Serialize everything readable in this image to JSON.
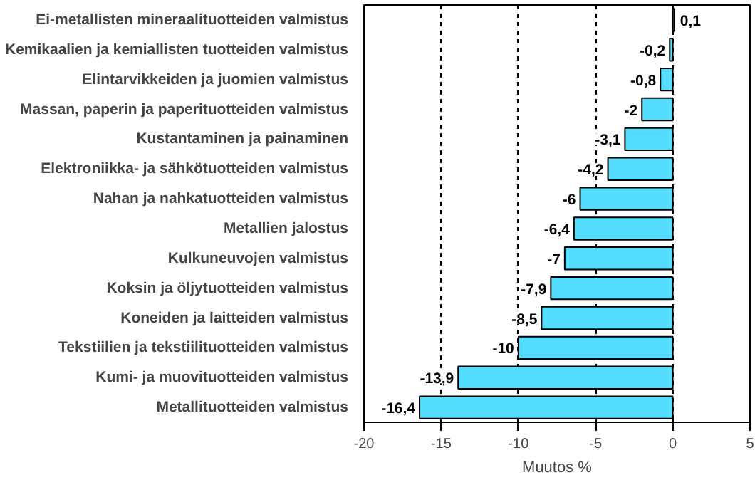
{
  "chart_data": {
    "type": "bar",
    "orientation": "horizontal",
    "xlabel": "Muutos %",
    "categories": [
      "Ei-metallisten mineraalituotteiden valmistus",
      "Kemikaalien ja kemiallisten tuotteiden valmistus",
      "Elintarvikkeiden ja juomien valmistus",
      "Massan, paperin ja paperituotteiden valmistus",
      "Kustantaminen ja painaminen",
      "Elektroniikka- ja sähkötuotteiden valmistus",
      "Nahan ja nahkatuotteiden valmistus",
      "Metallien jalostus",
      "Kulkuneuvojen valmistus",
      "Koksin ja öljytuotteiden valmistus",
      "Koneiden ja laitteiden valmistus",
      "Tekstiilien ja tekstiilituotteiden valmistus",
      "Kumi- ja muovituotteiden valmistus",
      "Metallituotteiden valmistus"
    ],
    "values": [
      0.1,
      -0.2,
      -0.8,
      -2,
      -3.1,
      -4.2,
      -6,
      -6.4,
      -7,
      -7.9,
      -8.5,
      -10,
      -13.9,
      -16.4
    ],
    "value_labels": [
      "0,1",
      "-0,2",
      "-0,8",
      "-2",
      "-3,1",
      "-4,2",
      "-6",
      "-6,4",
      "-7",
      "-7,9",
      "-8,5",
      "-10",
      "-13,9",
      "-16,4"
    ],
    "color": "#55ddff",
    "xlim": [
      -20,
      5
    ],
    "xticks": [
      -20,
      -15,
      -10,
      -5,
      0,
      5
    ],
    "grid": "x"
  }
}
